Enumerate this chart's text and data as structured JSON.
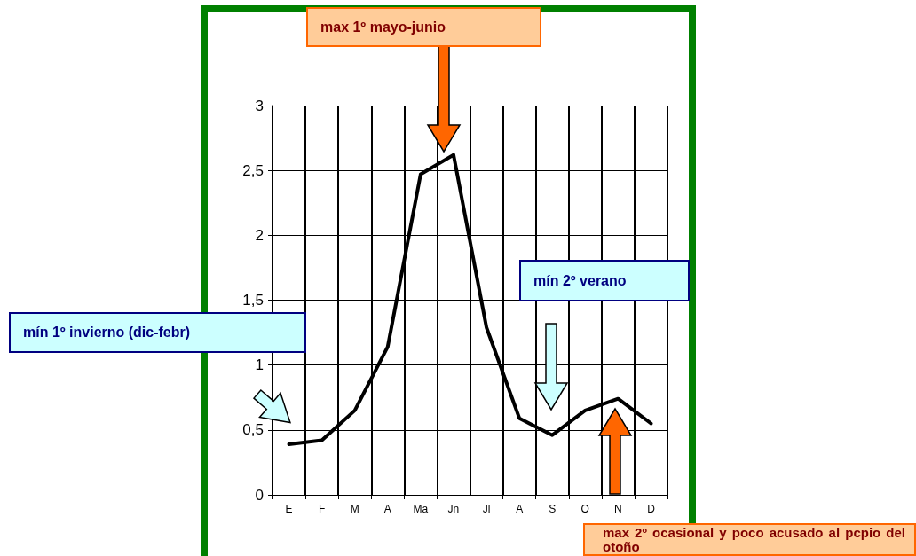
{
  "chart_data": {
    "type": "line",
    "categories": [
      "E",
      "F",
      "M",
      "A",
      "Ma",
      "Jn",
      "Jl",
      "A",
      "S",
      "O",
      "N",
      "D"
    ],
    "series": [
      {
        "color": "#000000",
        "values": [
          0.39,
          0.42,
          0.65,
          1.14,
          2.47,
          2.62,
          1.29,
          0.59,
          0.46,
          0.65,
          0.74,
          0.55
        ]
      }
    ],
    "ylim": [
      0,
      3
    ],
    "yticks": [
      0,
      {
        "value": 0.5,
        "label": "0,5"
      },
      1,
      {
        "value": 1.5,
        "label": "1,5"
      },
      2,
      {
        "value": 2.5,
        "label": "2,5"
      },
      3
    ],
    "grid": true,
    "marker": "none",
    "line_style": "solid",
    "annotations": [
      "max 1º mayo-junio",
      "mín 2º verano",
      "mín 1º invierno (dic-febr)",
      "max 2º ocasional y poco acusado al pcpio del otoño"
    ]
  }
}
